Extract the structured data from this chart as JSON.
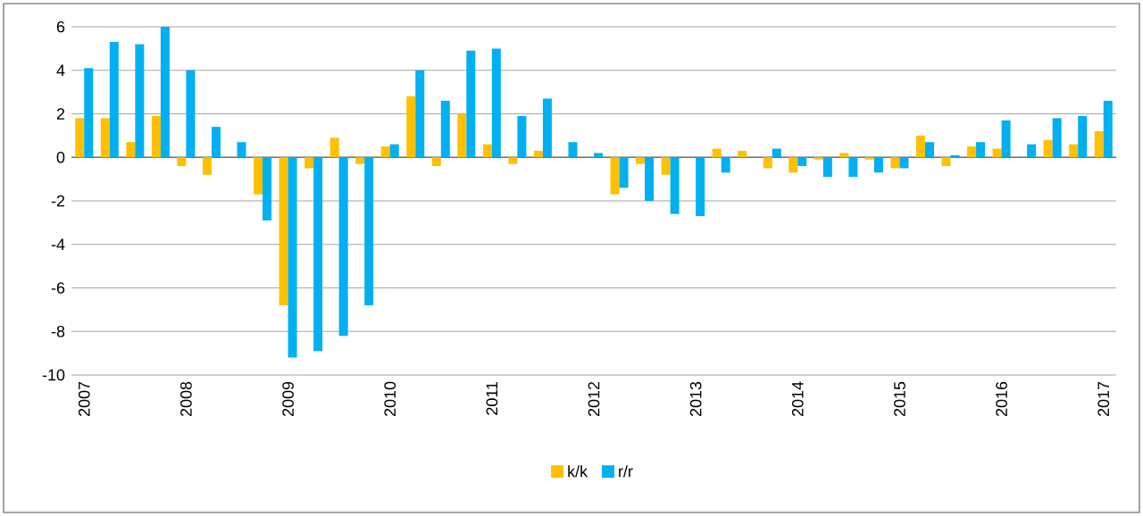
{
  "chart_data": {
    "type": "bar",
    "categories": [
      "2007",
      null,
      null,
      null,
      "2008",
      null,
      null,
      null,
      "2009",
      null,
      null,
      null,
      "2010",
      null,
      null,
      null,
      "2011",
      null,
      null,
      null,
      "2012",
      null,
      null,
      null,
      "2013",
      null,
      null,
      null,
      "2014",
      null,
      null,
      null,
      "2015",
      null,
      null,
      null,
      "2016",
      null,
      null,
      null,
      "2017"
    ],
    "series": [
      {
        "name": "k/k",
        "color": "#ffc000",
        "values": [
          1.8,
          1.8,
          0.7,
          1.9,
          -0.4,
          -0.8,
          0,
          -1.7,
          -6.8,
          -0.5,
          0.9,
          -0.3,
          0.5,
          2.8,
          -0.4,
          2.0,
          0.6,
          -0.3,
          0.3,
          0,
          0,
          -1.7,
          -0.3,
          -0.8,
          0,
          0.4,
          0.3,
          -0.5,
          -0.7,
          -0.1,
          0.2,
          -0.1,
          -0.5,
          1.0,
          -0.4,
          0.5,
          0.4,
          0,
          0.8,
          0.6,
          1.2
        ]
      },
      {
        "name": "r/r",
        "color": "#00b0f0",
        "values": [
          4.1,
          5.3,
          5.2,
          6.0,
          4.0,
          1.4,
          0.7,
          -2.9,
          -9.2,
          -8.9,
          -8.2,
          -6.8,
          0.6,
          4.0,
          2.6,
          4.9,
          5.0,
          1.9,
          2.7,
          0.7,
          0.2,
          -1.4,
          -2.0,
          -2.6,
          -2.7,
          -0.7,
          0,
          0.4,
          -0.4,
          -0.9,
          -0.9,
          -0.7,
          -0.5,
          0.7,
          0.1,
          0.7,
          1.7,
          0.6,
          1.8,
          1.9,
          2.6
        ]
      }
    ],
    "ylim": [
      -10,
      6
    ],
    "yticks": [
      -10,
      -8,
      -6,
      -4,
      -2,
      0,
      2,
      4,
      6
    ],
    "grid": "y",
    "legend": "bottom"
  }
}
